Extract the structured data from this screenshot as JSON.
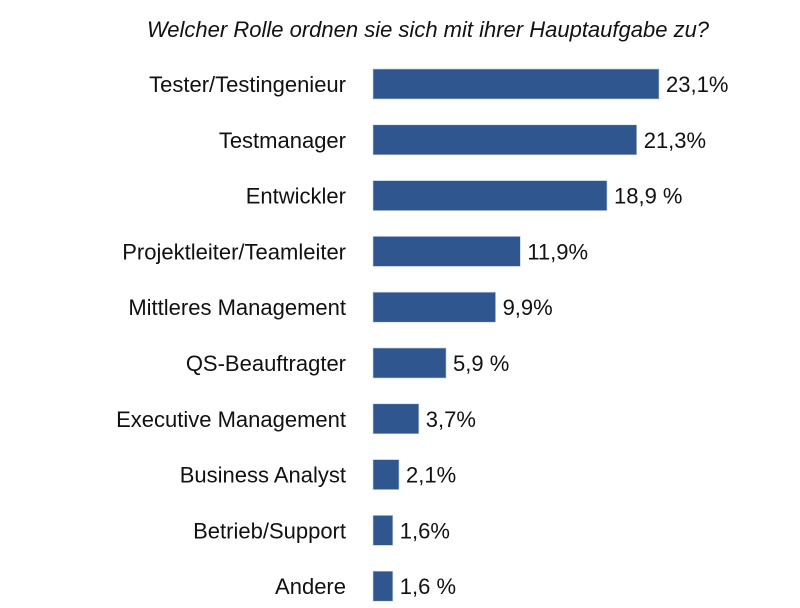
{
  "chart_data": {
    "type": "bar",
    "orientation": "horizontal",
    "title": "Welcher Rolle ordnen sie sich mit ihrer Hauptaufgabe zu?",
    "categories": [
      "Tester/Testingenieur",
      "Testmanager",
      "Entwickler",
      "Projektleiter/Teamleiter",
      "Mittleres Management",
      "QS-Beauftragter",
      "Executive Management",
      "Business Analyst",
      "Betrieb/Support",
      "Andere"
    ],
    "values": [
      23.1,
      21.3,
      18.9,
      11.9,
      9.9,
      5.9,
      3.7,
      2.1,
      1.6,
      1.6
    ],
    "data_labels": [
      "23,1%",
      "21,3%",
      "18,9 %",
      "11,9%",
      "9,9%",
      "5,9 %",
      "3,7%",
      "2,1%",
      "1,6%",
      "1,6 %"
    ],
    "unit": "%",
    "xlabel": "",
    "ylabel": "",
    "grid": false,
    "bar_color": "#2f568f"
  }
}
